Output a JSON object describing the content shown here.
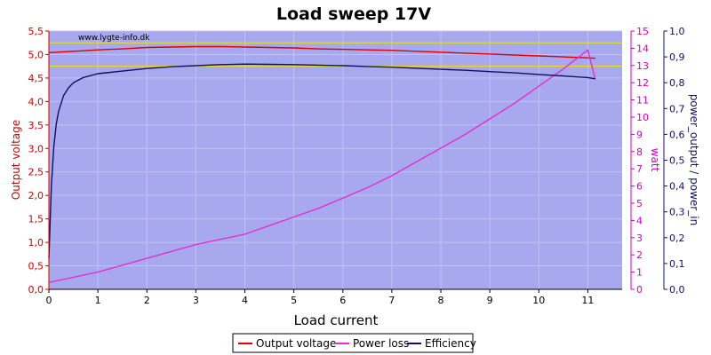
{
  "chart_data": {
    "type": "line",
    "title": "Load sweep 17V",
    "watermark": "www.lygte-info.dk",
    "xlabel": "Load current",
    "ylabel_left": "Output voltage",
    "ylabel_right1": "watt",
    "ylabel_right2": "power_output / power_in",
    "xlim": [
      0,
      11.7
    ],
    "ylim_left": [
      0,
      5.5
    ],
    "ylim_right1": [
      0,
      15
    ],
    "ylim_right2": [
      0,
      1.0
    ],
    "x_ticks": [
      "0",
      "1",
      "2",
      "3",
      "4",
      "5",
      "6",
      "7",
      "8",
      "9",
      "10",
      "11"
    ],
    "y_left_ticks": [
      "0,0",
      "0,5",
      "1,0",
      "1,5",
      "2,0",
      "2,5",
      "3,0",
      "3,5",
      "4,0",
      "4,5",
      "5,0",
      "5,5"
    ],
    "y_right1_ticks": [
      "0",
      "1",
      "2",
      "3",
      "4",
      "5",
      "6",
      "7",
      "8",
      "9",
      "10",
      "11",
      "12",
      "13",
      "14",
      "15"
    ],
    "y_right2_ticks": [
      "0,0",
      "0,1",
      "0,2",
      "0,3",
      "0,4",
      "0,5",
      "0,6",
      "0,7",
      "0,8",
      "0,9",
      "1,0"
    ],
    "reference_lines_left": [
      5.25,
      4.75
    ],
    "grid": true,
    "legend_position": "bottom",
    "colors": {
      "plot_bg": "#a8a8ee",
      "output_voltage": "#e00000",
      "power_loss": "#e030d0",
      "efficiency": "#101060",
      "reference": "#e8e800",
      "left_axis": "#d00000",
      "right1_axis": "#d000c0",
      "right2_axis": "#101060"
    },
    "series": [
      {
        "name": "Output voltage",
        "axis": "left",
        "x": [
          0,
          0.5,
          1,
          1.5,
          2,
          2.5,
          3,
          3.5,
          4,
          4.5,
          5,
          5.5,
          6,
          6.5,
          7,
          7.5,
          8,
          8.5,
          9,
          9.5,
          10,
          10.5,
          11,
          11.15
        ],
        "values": [
          5.04,
          5.07,
          5.1,
          5.12,
          5.15,
          5.16,
          5.17,
          5.17,
          5.16,
          5.15,
          5.14,
          5.12,
          5.11,
          5.1,
          5.09,
          5.07,
          5.05,
          5.03,
          5.01,
          4.99,
          4.97,
          4.95,
          4.93,
          4.92
        ]
      },
      {
        "name": "Power loss",
        "axis": "right1",
        "x": [
          0,
          0.5,
          1,
          1.5,
          2,
          2.5,
          3,
          3.5,
          4,
          4.5,
          5,
          5.5,
          6,
          6.5,
          7,
          7.5,
          8,
          8.5,
          9,
          9.5,
          10,
          10.5,
          11,
          11.15
        ],
        "values": [
          0.4,
          0.7,
          1.0,
          1.4,
          1.8,
          2.2,
          2.6,
          2.9,
          3.2,
          3.7,
          4.2,
          4.7,
          5.3,
          5.9,
          6.6,
          7.4,
          8.2,
          9.0,
          9.9,
          10.8,
          11.8,
          12.8,
          13.9,
          12.2
        ]
      },
      {
        "name": "Efficiency",
        "axis": "right2",
        "x": [
          0,
          0.05,
          0.1,
          0.15,
          0.2,
          0.3,
          0.4,
          0.5,
          0.7,
          1,
          1.5,
          2,
          2.5,
          3,
          3.5,
          4,
          4.5,
          5,
          5.5,
          6,
          6.5,
          7,
          7.5,
          8,
          8.5,
          9,
          9.5,
          10,
          10.5,
          11,
          11.15
        ],
        "values": [
          0.12,
          0.4,
          0.55,
          0.64,
          0.69,
          0.75,
          0.78,
          0.8,
          0.82,
          0.835,
          0.845,
          0.855,
          0.862,
          0.866,
          0.87,
          0.872,
          0.871,
          0.87,
          0.868,
          0.866,
          0.863,
          0.86,
          0.856,
          0.852,
          0.848,
          0.843,
          0.838,
          0.832,
          0.826,
          0.82,
          0.815
        ]
      }
    ]
  },
  "legend": [
    {
      "label": "Output voltage"
    },
    {
      "label": "Power loss"
    },
    {
      "label": "Efficiency"
    }
  ]
}
